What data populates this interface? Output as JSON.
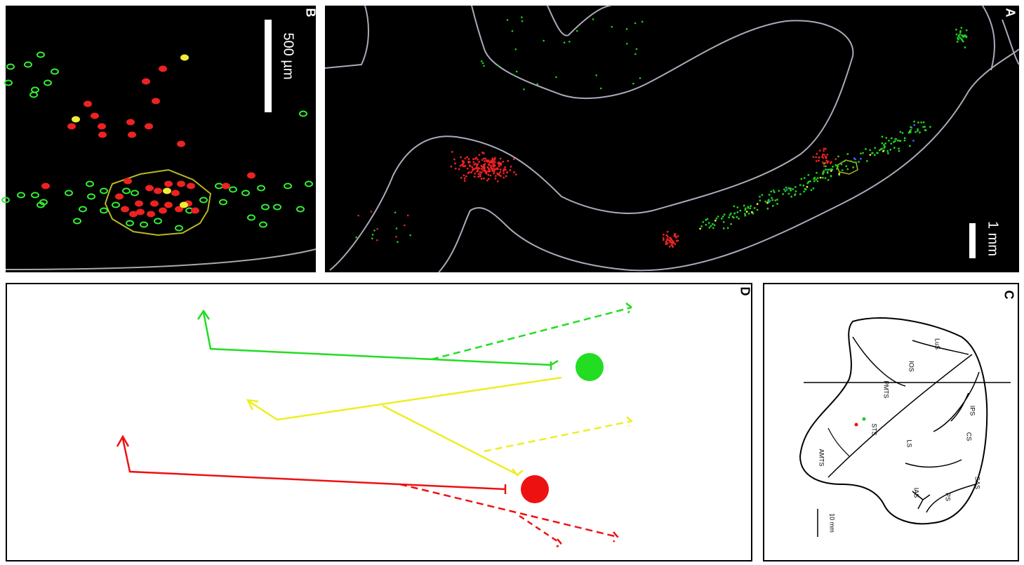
{
  "panels": {
    "a": {
      "label": "A",
      "scale_bar": "1 mm"
    },
    "b": {
      "label": "B",
      "scale_bar": "500 µm"
    },
    "c": {
      "label": "C",
      "scale_bar": "10 mm",
      "sulci": [
        "LuS",
        "IOS",
        "PMTS",
        "STS",
        "AMTS",
        "IPS",
        "CS",
        "LS",
        "IAS",
        "SAS",
        "PS"
      ]
    },
    "d": {
      "label": "D"
    }
  }
}
